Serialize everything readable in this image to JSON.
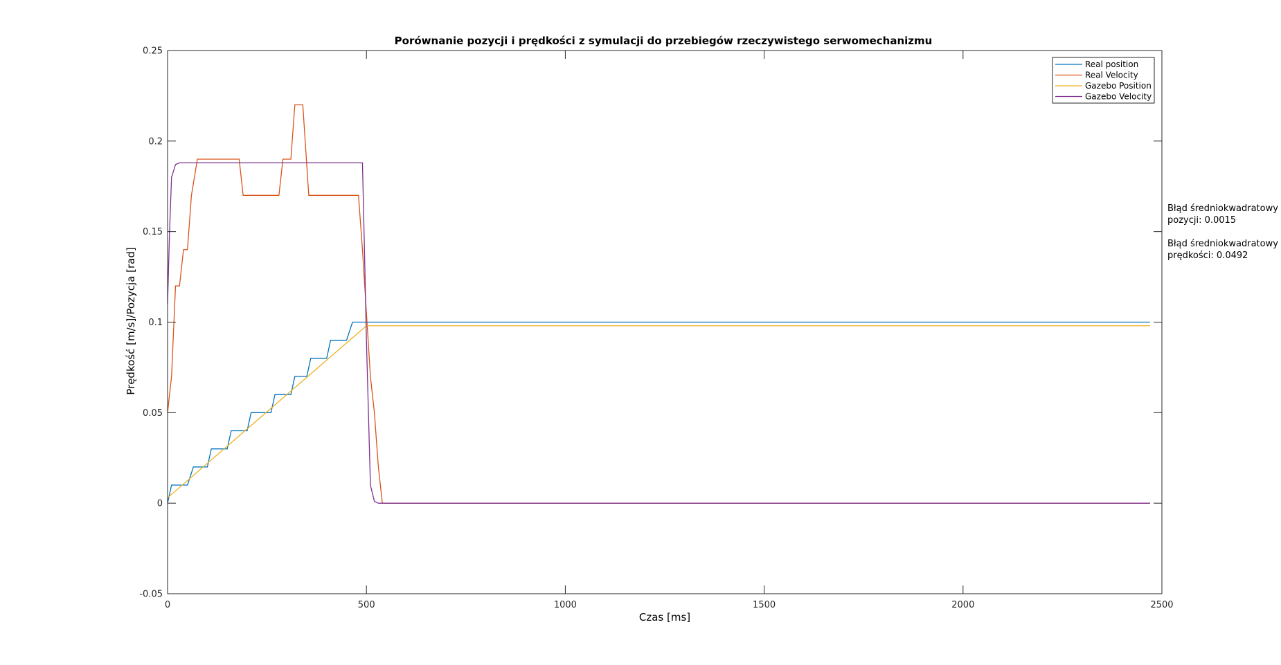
{
  "chart_data": {
    "type": "line",
    "title": "Porównanie pozycji i prędkości z symulacji do przebiegów rzeczywistego serwomechanizmu",
    "xlabel": "Czas [ms]",
    "ylabel": "Prędkość [m/s]/Pozycja [rad]",
    "xlim": [
      0,
      2500
    ],
    "ylim": [
      -0.05,
      0.25
    ],
    "xticks": [
      "0",
      "500",
      "1000",
      "1500",
      "2000",
      "2500"
    ],
    "yticks": [
      "-0.05",
      "0",
      "0.05",
      "0.1",
      "0.15",
      "0.2",
      "0.25"
    ],
    "legend_position": "top-right",
    "grid": false,
    "series": [
      {
        "name": "Real position",
        "color": "#0072BD",
        "points": [
          [
            0,
            0
          ],
          [
            10,
            0.01
          ],
          [
            50,
            0.01
          ],
          [
            65,
            0.02
          ],
          [
            100,
            0.02
          ],
          [
            110,
            0.03
          ],
          [
            150,
            0.03
          ],
          [
            160,
            0.04
          ],
          [
            200,
            0.04
          ],
          [
            210,
            0.05
          ],
          [
            260,
            0.05
          ],
          [
            270,
            0.06
          ],
          [
            310,
            0.06
          ],
          [
            320,
            0.07
          ],
          [
            350,
            0.07
          ],
          [
            360,
            0.08
          ],
          [
            400,
            0.08
          ],
          [
            410,
            0.09
          ],
          [
            450,
            0.09
          ],
          [
            465,
            0.1
          ],
          [
            2470,
            0.1
          ]
        ]
      },
      {
        "name": "Real Velocity",
        "color": "#D95319",
        "points": [
          [
            0,
            0.05
          ],
          [
            10,
            0.07
          ],
          [
            20,
            0.12
          ],
          [
            30,
            0.12
          ],
          [
            40,
            0.14
          ],
          [
            50,
            0.14
          ],
          [
            60,
            0.17
          ],
          [
            75,
            0.19
          ],
          [
            180,
            0.19
          ],
          [
            190,
            0.17
          ],
          [
            280,
            0.17
          ],
          [
            290,
            0.19
          ],
          [
            310,
            0.19
          ],
          [
            320,
            0.22
          ],
          [
            340,
            0.22
          ],
          [
            355,
            0.17
          ],
          [
            480,
            0.17
          ],
          [
            490,
            0.14
          ],
          [
            510,
            0.07
          ],
          [
            520,
            0.05
          ],
          [
            530,
            0.02
          ],
          [
            540,
            0
          ],
          [
            2470,
            0
          ]
        ]
      },
      {
        "name": "Gazebo Position",
        "color": "#EDB120",
        "points": [
          [
            0,
            0.003
          ],
          [
            500,
            0.098
          ],
          [
            2470,
            0.098
          ]
        ]
      },
      {
        "name": "Gazebo Velocity",
        "color": "#7E2F8E",
        "points": [
          [
            0,
            0.11
          ],
          [
            5,
            0.15
          ],
          [
            10,
            0.18
          ],
          [
            20,
            0.187
          ],
          [
            30,
            0.188
          ],
          [
            490,
            0.188
          ],
          [
            495,
            0.14
          ],
          [
            500,
            0.09
          ],
          [
            510,
            0.01
          ],
          [
            520,
            0.001
          ],
          [
            530,
            0
          ],
          [
            2470,
            0
          ]
        ]
      }
    ]
  },
  "annotations": [
    {
      "line1": "Błąd średniokwadratowy",
      "line2": "pozycji: 0.0015"
    },
    {
      "line1": "Błąd średniokwadratowy",
      "line2": "prędkości: 0.0492"
    }
  ]
}
